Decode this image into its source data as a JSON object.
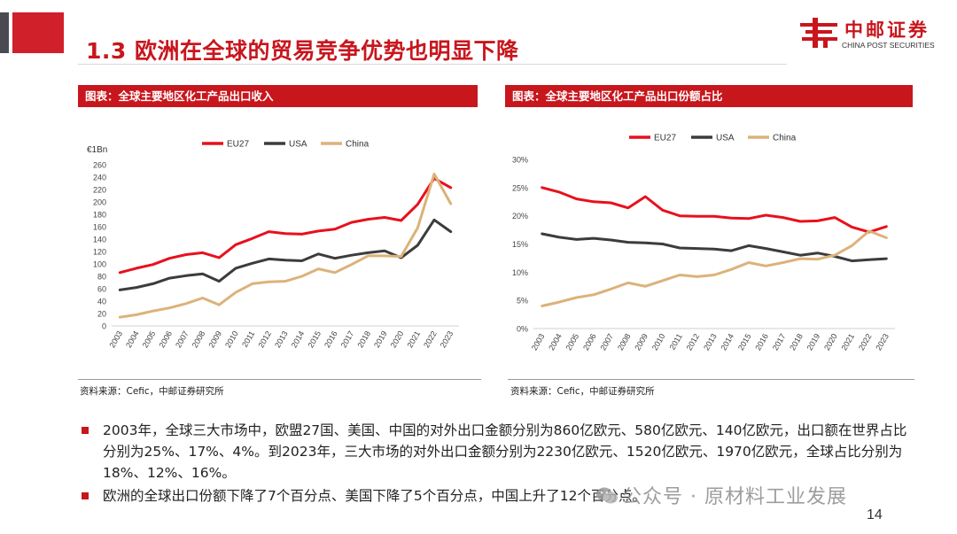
{
  "slide": {
    "title": "1.3 欧洲在全球的贸易竞争优势也明显下降",
    "logo_cn": "中邮证券",
    "logo_en": "CHINA POST SECURITIES",
    "page_number": "14",
    "watermark": "公众号 · 原材料工业发展"
  },
  "left_panel": {
    "header": "图表：全球主要地区化工产品出口收入",
    "source": "资料来源：Cefic，中邮证券研究所"
  },
  "right_panel": {
    "header": "图表：全球主要地区化工产品出口份额占比",
    "source": "资料来源：Cefic，中邮证券研究所"
  },
  "bullets": [
    "2003年，全球三大市场中，欧盟27国、美国、中国的对外出口金额分别为860亿欧元、580亿欧元、140亿欧元，出口额在世界占比分别为25%、17%、4%。到2023年，三大市场的对外出口金额分别为2230亿欧元、1520亿欧元、1970亿欧元，全球占比分别为18%、12%、16%。",
    "欧洲的全球出口份额下降了7个百分点、美国下降了5个百分点，中国上升了12个百分点。"
  ],
  "colors": {
    "brand_red": "#c8161d",
    "eu27": "#e8101e",
    "usa": "#3c3c3c",
    "china": "#dcb27a"
  },
  "chart_data": [
    {
      "type": "line",
      "title": "全球主要地区化工产品出口收入",
      "ylabel": "€1Bn",
      "xlabel": "",
      "categories": [
        "2003",
        "2004",
        "2005",
        "2006",
        "2007",
        "2008",
        "2009",
        "2010",
        "2011",
        "2012",
        "2013",
        "2014",
        "2015",
        "2016",
        "2017",
        "2018",
        "2019",
        "2020",
        "2021",
        "2022",
        "2023"
      ],
      "ylim": [
        0,
        260
      ],
      "yticks": [
        "0",
        "20",
        "40",
        "60",
        "80",
        "100",
        "120",
        "140",
        "160",
        "180",
        "200",
        "220",
        "240",
        "260"
      ],
      "legend": "top",
      "series": [
        {
          "name": "EU27",
          "values": [
            86,
            93,
            99,
            109,
            115,
            118,
            110,
            131,
            141,
            152,
            149,
            148,
            153,
            156,
            167,
            172,
            175,
            170,
            196,
            238,
            223
          ]
        },
        {
          "name": "USA",
          "values": [
            58,
            62,
            68,
            77,
            81,
            84,
            72,
            93,
            101,
            108,
            106,
            105,
            116,
            109,
            114,
            118,
            121,
            110,
            130,
            171,
            152
          ]
        },
        {
          "name": "China",
          "values": [
            14,
            18,
            24,
            29,
            36,
            45,
            34,
            54,
            68,
            71,
            72,
            80,
            92,
            86,
            99,
            113,
            113,
            112,
            158,
            245,
            197
          ]
        }
      ]
    },
    {
      "type": "line",
      "title": "全球主要地区化工产品出口份额占比",
      "xlabel": "",
      "ylabel": "",
      "categories": [
        "2003",
        "2004",
        "2005",
        "2006",
        "2007",
        "2008",
        "2009",
        "2010",
        "2011",
        "2012",
        "2013",
        "2014",
        "2015",
        "2016",
        "2017",
        "2018",
        "2019",
        "2020",
        "2021",
        "2022",
        "2023"
      ],
      "ylim": [
        0,
        30
      ],
      "yticks": [
        "0%",
        "5%",
        "10%",
        "15%",
        "20%",
        "25%",
        "30%"
      ],
      "legend": "top",
      "series": [
        {
          "name": "EU27",
          "values": [
            25.0,
            24.2,
            23.0,
            22.5,
            22.3,
            21.4,
            23.4,
            21.0,
            20.0,
            19.9,
            19.9,
            19.6,
            19.5,
            20.1,
            19.7,
            19.0,
            19.1,
            19.7,
            18.0,
            17.1,
            18.1
          ]
        },
        {
          "name": "USA",
          "values": [
            16.8,
            16.2,
            15.8,
            16.0,
            15.7,
            15.3,
            15.2,
            15.0,
            14.3,
            14.2,
            14.1,
            13.8,
            14.7,
            14.2,
            13.6,
            13.0,
            13.4,
            12.8,
            12.0,
            12.2,
            12.4
          ]
        },
        {
          "name": "China",
          "values": [
            4.0,
            4.7,
            5.5,
            6.0,
            7.0,
            8.1,
            7.5,
            8.5,
            9.5,
            9.2,
            9.5,
            10.5,
            11.7,
            11.1,
            11.7,
            12.4,
            12.3,
            13.0,
            14.7,
            17.3,
            16.1
          ]
        }
      ]
    }
  ]
}
